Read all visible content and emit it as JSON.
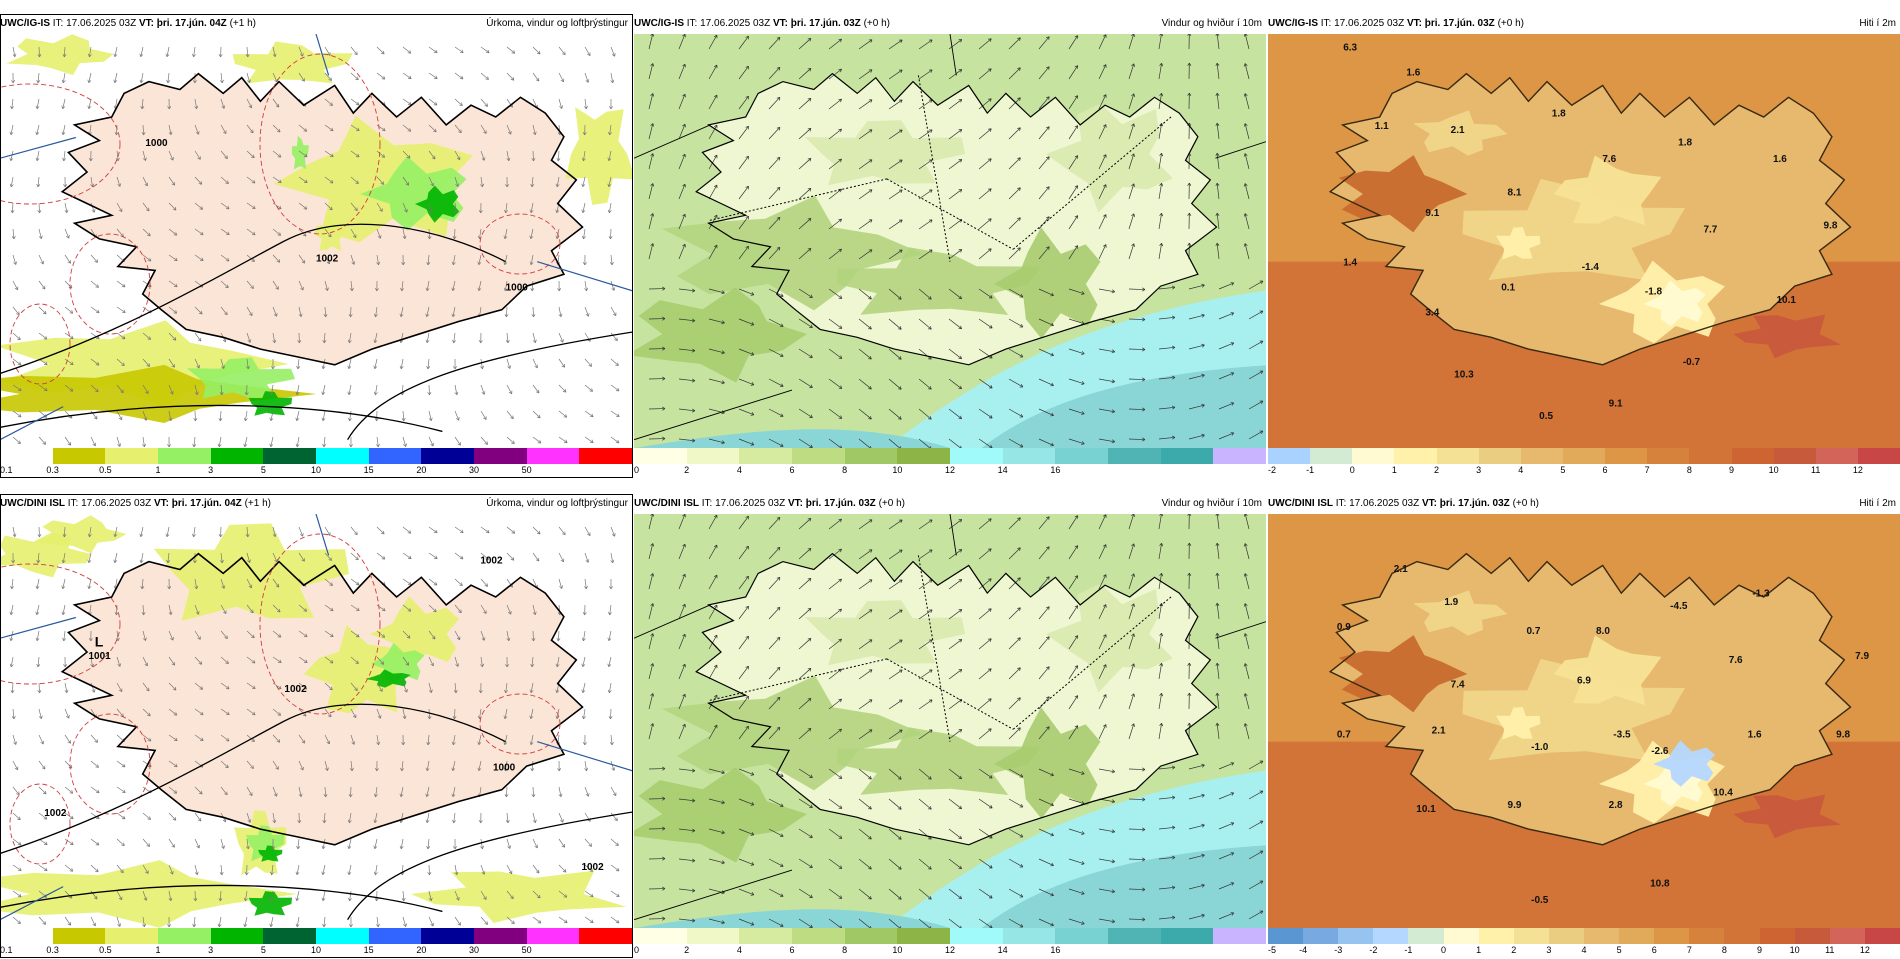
{
  "rows": [
    {
      "panels": [
        {
          "model": "UWC/IG-IS",
          "it_label": "IT:",
          "it": "17.06.2025 03Z",
          "vt_label": "VT:",
          "vt": "þri. 17.jún. 04Z",
          "lead": "(+1 h)",
          "title": "Úrkoma, vindur og loftþrýstingur",
          "kind": "precip",
          "isobars": [
            "1000",
            "1002",
            "1000"
          ],
          "lows": [],
          "colorbar": {
            "colors": [
              "#ffffff",
              "#c8c800",
              "#e6f06e",
              "#96f064",
              "#00b400",
              "#006432",
              "#00ffff",
              "#3264ff",
              "#000096",
              "#800080",
              "#ff32ff",
              "#ff0000"
            ],
            "ticks": [
              "0.1",
              "0.3",
              "0.5",
              "1",
              "3",
              "5",
              "10",
              "15",
              "20",
              "30",
              "50"
            ]
          }
        },
        {
          "model": "UWC/IG-IS",
          "it_label": "IT:",
          "it": "17.06.2025 03Z",
          "vt_label": "VT:",
          "vt": "þri. 17.jún. 03Z",
          "lead": "(+0 h)",
          "title": "Vindur og hviður í 10m",
          "kind": "wind",
          "colorbar": {
            "colors": [
              "#ffffe6",
              "#f0f8c8",
              "#d7eba0",
              "#bedc82",
              "#a0c864",
              "#8cb446",
              "#a0fafa",
              "#96e6e6",
              "#78d2d2",
              "#50b4b4",
              "#3caaaa",
              "#c8b4ff"
            ],
            "ticks": [
              "0",
              "2",
              "4",
              "6",
              "8",
              "10",
              "12",
              "14",
              "16"
            ]
          }
        },
        {
          "model": "UWC/IG-IS",
          "it_label": "IT:",
          "it": "17.06.2025 03Z",
          "vt_label": "VT:",
          "vt": "þri. 17.jún. 03Z",
          "lead": "(+0 h)",
          "title": "Hiti í 2m",
          "kind": "temp",
          "labels": [
            "6.3",
            "1.6",
            "1.1",
            "2.1",
            "1.8",
            "1.8",
            "7.6",
            "1.6",
            "8.1",
            "9.1",
            "7.7",
            "9.8",
            "1.4",
            "0.1",
            "-1.4",
            "-1.8",
            "10.1",
            "3.4",
            "-0.7",
            "10.3",
            "9.1",
            "0.5"
          ],
          "colorbar": {
            "colors": [
              "#aad2ff",
              "#d2ebd2",
              "#fffad2",
              "#fff0aa",
              "#f5e196",
              "#ebcd82",
              "#e6b96e",
              "#e1aa5a",
              "#dc9646",
              "#d7823c",
              "#d27337",
              "#cd6432",
              "#c85a3c",
              "#d2645a",
              "#c84646"
            ],
            "ticks": [
              "-2",
              "-1",
              "0",
              "1",
              "2",
              "3",
              "4",
              "5",
              "6",
              "7",
              "8",
              "9",
              "10",
              "11",
              "12"
            ]
          }
        }
      ]
    },
    {
      "panels": [
        {
          "model": "UWC/DINI ISL",
          "it_label": "IT:",
          "it": "17.06.2025 03Z",
          "vt_label": "VT:",
          "vt": "þri. 17.jún. 04Z",
          "lead": "(+1 h)",
          "title": "Úrkoma, vindur og loftþrýstingur",
          "kind": "precip",
          "isobars": [
            "1002",
            "1002",
            "1000",
            "1002",
            "1002"
          ],
          "lows": [
            "L",
            "1001"
          ],
          "colorbar": {
            "colors": [
              "#ffffff",
              "#c8c800",
              "#e6f06e",
              "#96f064",
              "#00b400",
              "#006432",
              "#00ffff",
              "#3264ff",
              "#000096",
              "#800080",
              "#ff32ff",
              "#ff0000"
            ],
            "ticks": [
              "0.1",
              "0.3",
              "0.5",
              "1",
              "3",
              "5",
              "10",
              "15",
              "20",
              "30",
              "50"
            ]
          }
        },
        {
          "model": "UWC/DINI ISL",
          "it_label": "IT:",
          "it": "17.06.2025 03Z",
          "vt_label": "VT:",
          "vt": "þri. 17.jún. 03Z",
          "lead": "(+0 h)",
          "title": "Vindur og hviður í 10m",
          "kind": "wind",
          "colorbar": {
            "colors": [
              "#ffffe6",
              "#f0f8c8",
              "#d7eba0",
              "#bedc82",
              "#a0c864",
              "#8cb446",
              "#a0fafa",
              "#96e6e6",
              "#78d2d2",
              "#50b4b4",
              "#3caaaa",
              "#c8b4ff"
            ],
            "ticks": [
              "0",
              "2",
              "4",
              "6",
              "8",
              "10",
              "12",
              "14",
              "16"
            ]
          }
        },
        {
          "model": "UWC/DINI ISL",
          "it_label": "IT:",
          "it": "17.06.2025 03Z",
          "vt_label": "VT:",
          "vt": "þri. 17.jún. 03Z",
          "lead": "(+0 h)",
          "title": "Hiti í 2m",
          "kind": "temp",
          "labels": [
            "2.1",
            "1.9",
            "0.9",
            "0.7",
            "8.0",
            "-4.5",
            "-1.3",
            "7.4",
            "6.9",
            "7.6",
            "7.9",
            "0.7",
            "2.1",
            "-1.0",
            "-3.5",
            "-2.6",
            "1.6",
            "9.8",
            "10.1",
            "9.9",
            "2.8",
            "10.4",
            "-0.5",
            "10.8"
          ],
          "colorbar": {
            "colors": [
              "#5a96d2",
              "#78aae1",
              "#96c3f0",
              "#b4d7ff",
              "#d2ebd2",
              "#fffad2",
              "#fff0aa",
              "#f5e196",
              "#ebcd82",
              "#e6b96e",
              "#e1aa5a",
              "#dc9646",
              "#d7823c",
              "#d27337",
              "#cd6432",
              "#c85a3c",
              "#d2645a",
              "#c84646"
            ],
            "ticks": [
              "-5",
              "-4",
              "-3",
              "-2",
              "-1",
              "0",
              "1",
              "2",
              "3",
              "4",
              "5",
              "6",
              "7",
              "8",
              "9",
              "10",
              "11",
              "12"
            ]
          }
        }
      ]
    }
  ]
}
